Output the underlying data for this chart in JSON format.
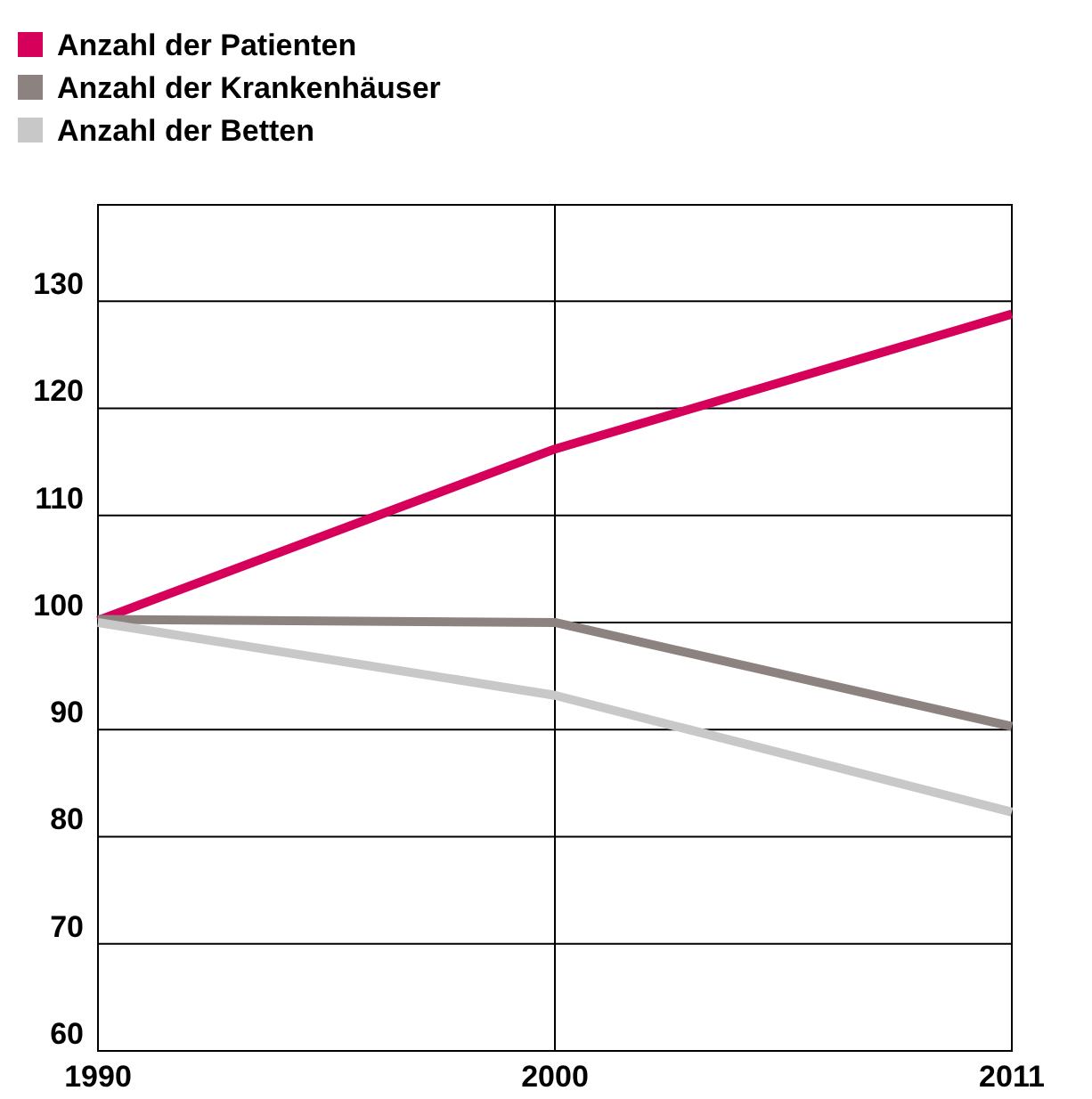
{
  "chart_data": {
    "type": "line",
    "categories": [
      "1990",
      "2000",
      "2011"
    ],
    "series": [
      {
        "name": "Anzahl der Patienten",
        "color": "#d6005a",
        "values": [
          100.2,
          116.2,
          128.8
        ]
      },
      {
        "name": "Anzahl der Krankenhäuser",
        "color": "#8c8380",
        "values": [
          100.3,
          100,
          90.3
        ]
      },
      {
        "name": "Anzahl der Betten",
        "color": "#c8c8c8",
        "values": [
          100,
          93.2,
          82.3
        ]
      }
    ],
    "ylim": [
      60,
      139
    ],
    "yticks": [
      60,
      70,
      80,
      90,
      100,
      110,
      120,
      130
    ],
    "grid": true,
    "legend": "top left",
    "marker": "none",
    "line_style": "solid"
  }
}
